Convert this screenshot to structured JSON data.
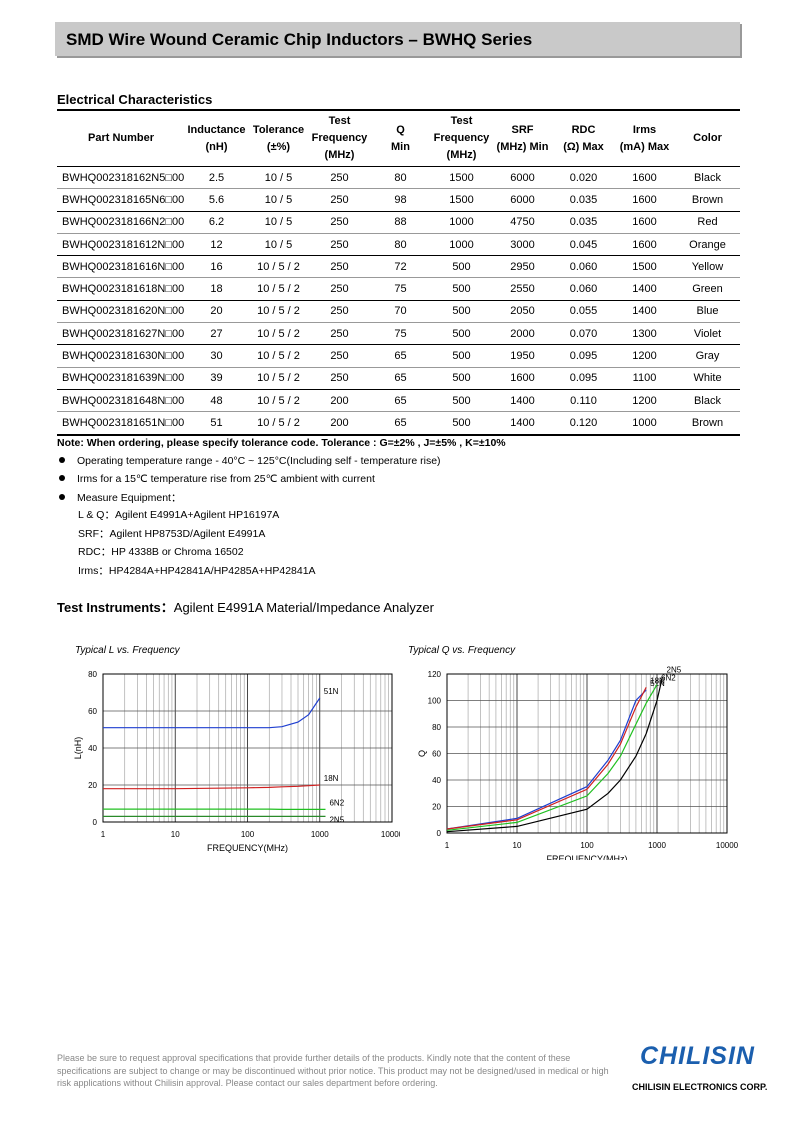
{
  "header": {
    "title": "SMD Wire Wound Ceramic Chip Inductors – BWHQ Series"
  },
  "section_title": "Electrical Characteristics",
  "table": {
    "columns": [
      [
        "Part Number"
      ],
      [
        "Inductance",
        "(nH)"
      ],
      [
        "Tolerance",
        "(±%)"
      ],
      [
        "Test",
        "Frequency",
        "(MHz)"
      ],
      [
        "Q",
        "Min"
      ],
      [
        "Test",
        "Frequency",
        "(MHz)"
      ],
      [
        "SRF",
        "(MHz) Min"
      ],
      [
        "RDC",
        "(Ω) Max"
      ],
      [
        "Irms",
        "(mA) Max"
      ],
      [
        "Color"
      ]
    ],
    "rows": [
      [
        "BWHQ002318162N5□00",
        "2.5",
        "10 / 5",
        "250",
        "80",
        "1500",
        "6000",
        "0.020",
        "1600",
        "Black"
      ],
      [
        "BWHQ002318165N6□00",
        "5.6",
        "10 / 5",
        "250",
        "98",
        "1500",
        "6000",
        "0.035",
        "1600",
        "Brown"
      ],
      [
        "BWHQ002318166N2□00",
        "6.2",
        "10 / 5",
        "250",
        "88",
        "1000",
        "4750",
        "0.035",
        "1600",
        "Red"
      ],
      [
        "BWHQ0023181612N□00",
        "12",
        "10 / 5",
        "250",
        "80",
        "1000",
        "3000",
        "0.045",
        "1600",
        "Orange"
      ],
      [
        "BWHQ0023181616N□00",
        "16",
        "10 / 5 / 2",
        "250",
        "72",
        "500",
        "2950",
        "0.060",
        "1500",
        "Yellow"
      ],
      [
        "BWHQ0023181618N□00",
        "18",
        "10 / 5 / 2",
        "250",
        "75",
        "500",
        "2550",
        "0.060",
        "1400",
        "Green"
      ],
      [
        "BWHQ0023181620N□00",
        "20",
        "10 / 5 / 2",
        "250",
        "70",
        "500",
        "2050",
        "0.055",
        "1400",
        "Blue"
      ],
      [
        "BWHQ0023181627N□00",
        "27",
        "10 / 5 / 2",
        "250",
        "75",
        "500",
        "2000",
        "0.070",
        "1300",
        "Violet"
      ],
      [
        "BWHQ0023181630N□00",
        "30",
        "10 / 5 / 2",
        "250",
        "65",
        "500",
        "1950",
        "0.095",
        "1200",
        "Gray"
      ],
      [
        "BWHQ0023181639N□00",
        "39",
        "10 / 5 / 2",
        "250",
        "65",
        "500",
        "1600",
        "0.095",
        "1100",
        "White"
      ],
      [
        "BWHQ0023181648N□00",
        "48",
        "10 / 5 / 2",
        "200",
        "65",
        "500",
        "1400",
        "0.110",
        "1200",
        "Black"
      ],
      [
        "BWHQ0023181651N□00",
        "51",
        "10 / 5 / 2",
        "200",
        "65",
        "500",
        "1400",
        "0.120",
        "1000",
        "Brown"
      ]
    ]
  },
  "note": "Note: When ordering, please specify tolerance code. Tolerance : G=±2% , J=±5% , K=±10%",
  "bullets": [
    "Operating temperature range - 40°C ~ 125°C(Including self - temperature rise)",
    "Irms for a 15℃  temperature rise from 25℃  ambient with current",
    "Measure Equipment："
  ],
  "equipment": [
    "L & Q：Agilent E4991A+Agilent HP16197A",
    "SRF：Agilent HP8753D/Agilent E4991A",
    "RDC：HP 4338B or Chroma 16502",
    "Irms：HP4284A+HP42841A/HP4285A+HP42841A"
  ],
  "instruments": {
    "label": "Test Instruments：",
    "text": "Agilent E4991A Material/Impedance Analyzer"
  },
  "chart_data": [
    {
      "type": "line",
      "title": "Typical L vs. Frequency",
      "xlabel": "FREQUENCY(MHz)",
      "ylabel": "L(nH)",
      "log_x": true,
      "grid": true,
      "x": [
        1,
        10,
        100,
        200,
        300,
        500,
        700,
        1000,
        1200
      ],
      "xlim": [
        1,
        10000
      ],
      "xticks": [
        1,
        10,
        100,
        1000,
        10000
      ],
      "ylim": [
        0,
        80
      ],
      "yticks": [
        0,
        20,
        40,
        60,
        80
      ],
      "series": [
        {
          "name": "51N",
          "color": "#1f3fd0",
          "values": [
            51,
            51,
            51,
            51,
            51.5,
            54,
            58,
            67,
            null
          ]
        },
        {
          "name": "18N",
          "color": "#d02020",
          "values": [
            18,
            18,
            18.5,
            18.7,
            19,
            19.3,
            19.6,
            20,
            null
          ]
        },
        {
          "name": "6N2",
          "color": "#20c020",
          "values": [
            7,
            7,
            7,
            7,
            6.8,
            6.8,
            6.8,
            6.8,
            6.8
          ]
        },
        {
          "name": "2N5",
          "color": "#2a8a2a",
          "values": [
            3,
            3,
            3,
            3,
            3,
            3,
            3,
            3,
            3
          ]
        }
      ]
    },
    {
      "type": "line",
      "title": "Typical Q vs. Frequency",
      "xlabel": "FREQUENCY(MHz)",
      "ylabel": "Q",
      "log_x": true,
      "grid": true,
      "x": [
        1,
        10,
        100,
        200,
        300,
        500,
        700,
        1000,
        1200
      ],
      "xlim": [
        1,
        10000
      ],
      "xticks": [
        1,
        10,
        100,
        1000,
        10000
      ],
      "ylim": [
        0,
        120
      ],
      "yticks": [
        0,
        20,
        40,
        60,
        80,
        100,
        120
      ],
      "series": [
        {
          "name": "51N",
          "color": "#1f3fd0",
          "values": [
            3,
            11,
            35,
            55,
            70,
            100,
            108,
            null,
            null
          ]
        },
        {
          "name": "18N",
          "color": "#d02020",
          "values": [
            3,
            10,
            33,
            52,
            67,
            95,
            110,
            null,
            null
          ]
        },
        {
          "name": "6N2",
          "color": "#20c020",
          "values": [
            2,
            8,
            28,
            45,
            58,
            82,
            98,
            112,
            null
          ]
        },
        {
          "name": "2N5",
          "color": "#000000",
          "values": [
            1,
            5,
            18,
            30,
            40,
            58,
            75,
            100,
            118
          ]
        }
      ]
    }
  ],
  "footer": {
    "disclaimer": "Please be sure to request approval specifications that provide further details of the products. Kindly note that the content of these specifications are subject to change or may be discontinued without prior notice. This product may not be designed/used in medical or high risk applications without Chilisin approval. Please contact our sales department before ordering.",
    "logo": "CHILISIN",
    "company": "CHILISIN ELECTRONICS CORP."
  }
}
